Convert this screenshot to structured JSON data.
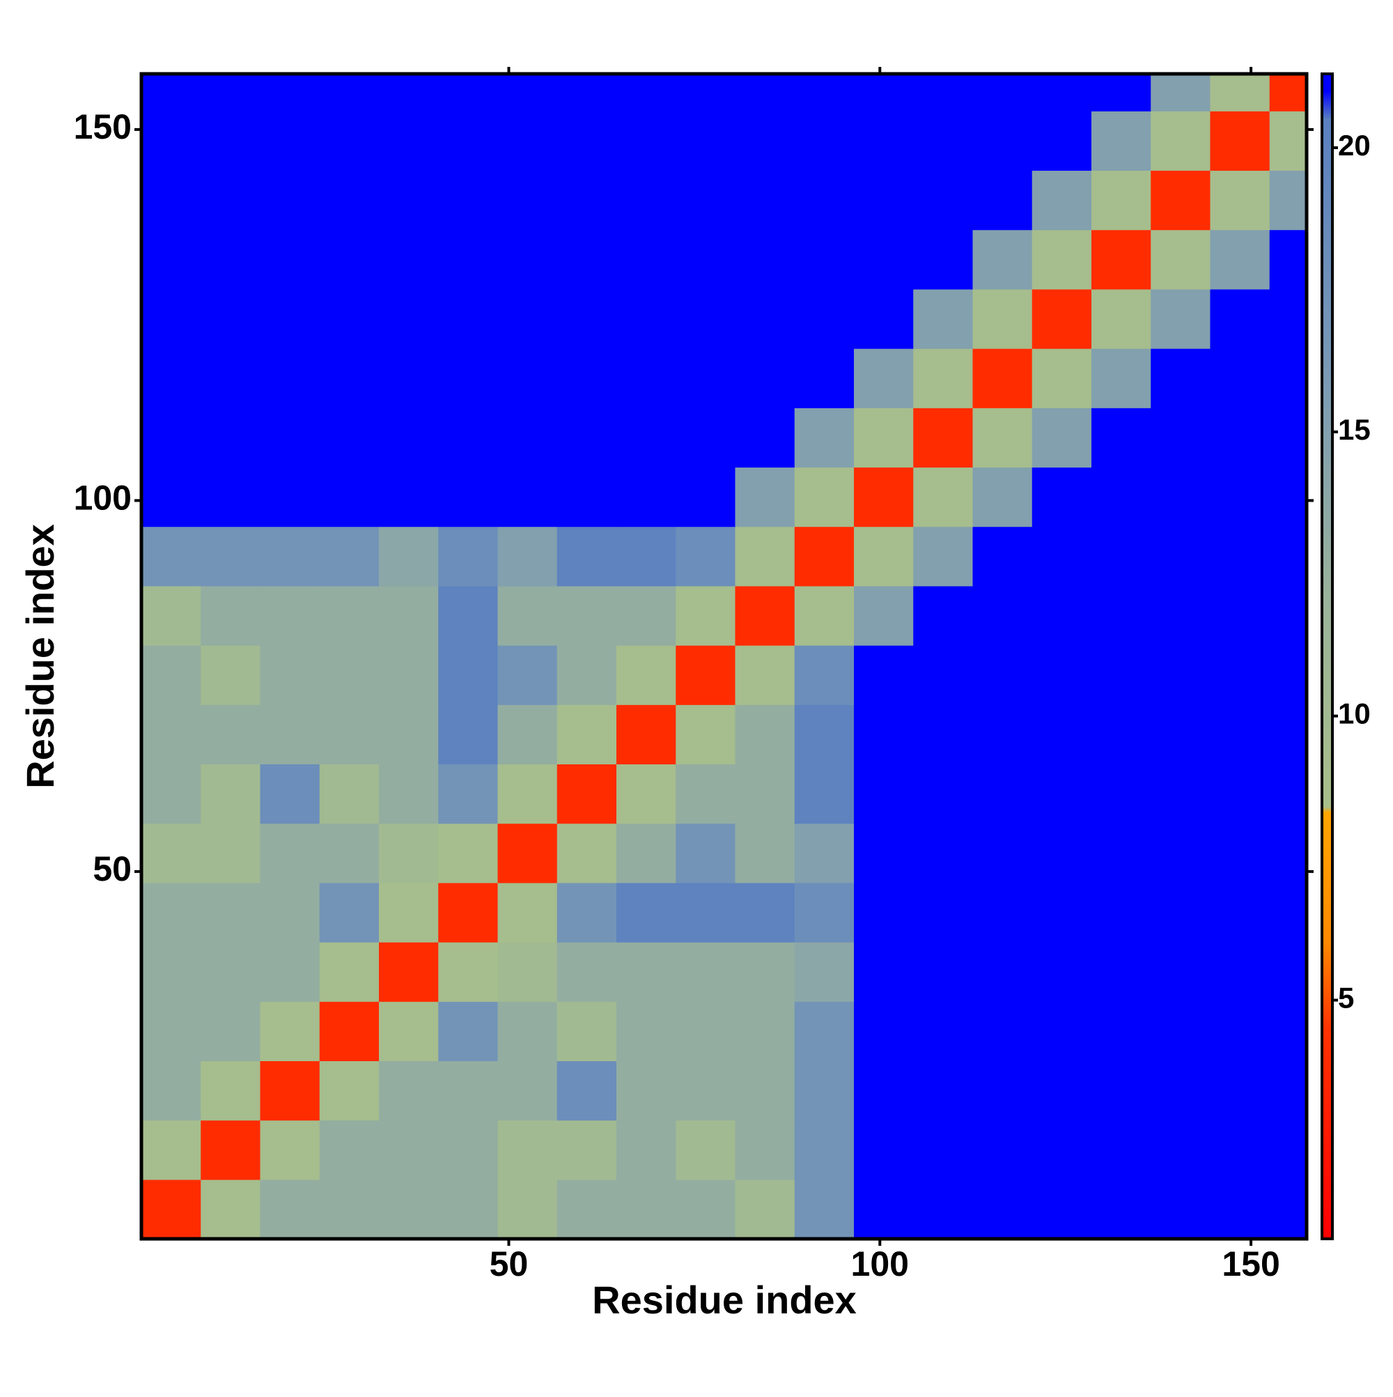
{
  "chart_data": {
    "type": "heatmap",
    "xlabel": "Residue index",
    "ylabel": "Residue index",
    "xlim": [
      0.5,
      157.5
    ],
    "ylim": [
      0.5,
      157.5
    ],
    "xticks": [
      50,
      100,
      150
    ],
    "yticks": [
      50,
      100,
      150
    ],
    "bins": [
      0.5,
      8.5,
      16.5,
      24.5,
      32.5,
      40.5,
      48.5,
      56.5,
      64.5,
      72.5,
      80.5,
      88.5,
      96.5,
      104.5,
      112.5,
      120.5,
      128.5,
      136.5,
      144.5,
      152.5,
      157.5
    ],
    "z": [
      [
        4,
        9,
        13,
        13,
        13,
        13,
        10,
        13,
        13,
        13,
        10,
        17,
        21,
        21,
        21,
        21,
        21,
        21,
        21,
        21
      ],
      [
        9,
        4,
        9,
        13,
        13,
        13,
        10,
        10,
        13,
        10,
        13,
        17,
        21,
        21,
        21,
        21,
        21,
        21,
        21,
        21
      ],
      [
        13,
        9,
        4,
        9,
        13,
        13,
        13,
        18,
        13,
        13,
        13,
        17,
        21,
        21,
        21,
        21,
        21,
        21,
        21,
        21
      ],
      [
        13,
        13,
        9,
        4,
        9,
        17,
        13,
        10,
        13,
        13,
        13,
        17,
        21,
        21,
        21,
        21,
        21,
        21,
        21,
        21
      ],
      [
        13,
        13,
        13,
        9,
        4,
        9,
        10,
        13,
        13,
        13,
        13,
        14,
        21,
        21,
        21,
        21,
        21,
        21,
        21,
        21
      ],
      [
        13,
        13,
        13,
        17,
        9,
        4,
        9,
        17,
        20,
        20,
        20,
        18,
        21,
        21,
        21,
        21,
        21,
        21,
        21,
        21
      ],
      [
        10,
        10,
        13,
        13,
        10,
        9,
        4,
        9,
        13,
        17,
        13,
        15,
        21,
        21,
        21,
        21,
        21,
        21,
        21,
        21
      ],
      [
        13,
        10,
        18,
        10,
        13,
        17,
        9,
        4,
        9,
        13,
        13,
        20,
        21,
        21,
        21,
        21,
        21,
        21,
        21,
        21
      ],
      [
        13,
        13,
        13,
        13,
        13,
        20,
        13,
        9,
        4,
        9,
        13,
        20,
        21,
        21,
        21,
        21,
        21,
        21,
        21,
        21
      ],
      [
        13,
        10,
        13,
        13,
        13,
        20,
        17,
        13,
        9,
        4,
        9,
        18,
        21,
        21,
        21,
        21,
        21,
        21,
        21,
        21
      ],
      [
        10,
        13,
        13,
        13,
        13,
        20,
        13,
        13,
        13,
        9,
        4,
        9,
        15,
        21,
        21,
        21,
        21,
        21,
        21,
        21
      ],
      [
        17,
        17,
        17,
        17,
        14,
        18,
        15,
        20,
        20,
        18,
        9,
        4,
        9,
        15,
        21,
        21,
        21,
        21,
        21,
        21
      ],
      [
        21,
        21,
        21,
        21,
        21,
        21,
        21,
        21,
        21,
        21,
        15,
        9,
        4,
        9,
        15,
        21,
        21,
        21,
        21,
        21
      ],
      [
        21,
        21,
        21,
        21,
        21,
        21,
        21,
        21,
        21,
        21,
        21,
        15,
        9,
        4,
        9,
        15,
        21,
        21,
        21,
        21
      ],
      [
        21,
        21,
        21,
        21,
        21,
        21,
        21,
        21,
        21,
        21,
        21,
        21,
        15,
        9,
        4,
        9,
        15,
        21,
        21,
        21
      ],
      [
        21,
        21,
        21,
        21,
        21,
        21,
        21,
        21,
        21,
        21,
        21,
        21,
        21,
        15,
        9,
        4,
        9,
        15,
        21,
        21
      ],
      [
        21,
        21,
        21,
        21,
        21,
        21,
        21,
        21,
        21,
        21,
        21,
        21,
        21,
        21,
        15,
        9,
        4,
        9,
        15,
        21
      ],
      [
        21,
        21,
        21,
        21,
        21,
        21,
        21,
        21,
        21,
        21,
        21,
        21,
        21,
        21,
        21,
        15,
        9,
        4,
        9,
        15
      ],
      [
        21,
        21,
        21,
        21,
        21,
        21,
        21,
        21,
        21,
        21,
        21,
        21,
        21,
        21,
        21,
        21,
        15,
        9,
        4,
        9
      ],
      [
        21,
        21,
        21,
        21,
        21,
        21,
        21,
        21,
        21,
        21,
        21,
        21,
        21,
        21,
        21,
        21,
        21,
        15,
        9,
        4
      ]
    ],
    "zlim": [
      0.8,
      21.3
    ],
    "zticks": [
      5,
      10,
      15,
      20
    ],
    "colorscale": [
      {
        "value": 0.8,
        "color": "#ff0000"
      },
      {
        "value": 4.5,
        "color": "#ff3300"
      },
      {
        "value": 6,
        "color": "#ff8800"
      },
      {
        "value": 8.3,
        "color": "#ffa500"
      },
      {
        "value": 8.4,
        "color": "#a8bf8a"
      },
      {
        "value": 12,
        "color": "#9bb39a"
      },
      {
        "value": 16,
        "color": "#7a9ab5"
      },
      {
        "value": 20.5,
        "color": "#5a80c0"
      },
      {
        "value": 21,
        "color": "#0000ff"
      },
      {
        "value": 21.3,
        "color": "#0000ff"
      }
    ]
  }
}
